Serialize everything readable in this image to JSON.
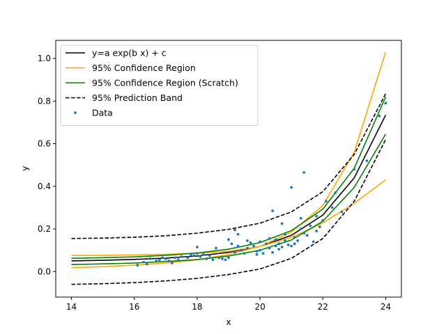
{
  "chart_data": {
    "type": "line",
    "xlabel": "x",
    "ylabel": "y",
    "xlim": [
      13.5,
      24.5
    ],
    "ylim": [
      -0.12,
      1.085
    ],
    "x_ticks": [
      14,
      16,
      18,
      20,
      22,
      24
    ],
    "x_tick_labels": [
      "14",
      "16",
      "18",
      "20",
      "22",
      "24"
    ],
    "y_ticks": [
      0.0,
      0.2,
      0.4,
      0.6,
      0.8,
      1.0
    ],
    "y_tick_labels": [
      "0.0",
      "0.2",
      "0.4",
      "0.6",
      "0.8",
      "1.0"
    ],
    "grid": false,
    "legend_position": "top-left",
    "x": [
      14,
      15,
      16,
      17,
      18,
      19,
      20,
      21,
      22,
      23,
      24
    ],
    "series": [
      {
        "name": "y=a exp(b x) + c",
        "color": "#000000",
        "style": "solid",
        "values": [
          0.05,
          0.053,
          0.057,
          0.063,
          0.073,
          0.09,
          0.118,
          0.17,
          0.265,
          0.44,
          0.735
        ]
      },
      {
        "name": "95% Confidence Region",
        "color": "#ffa500",
        "style": "solid",
        "values": [
          0.018,
          0.023,
          0.03,
          0.04,
          0.055,
          0.08,
          0.118,
          0.185,
          0.31,
          0.56,
          1.03
        ]
      },
      {
        "name": "95% Confidence Region",
        "color": "#ffa500",
        "style": "solid",
        "legend": false,
        "values": [
          0.075,
          0.076,
          0.078,
          0.081,
          0.086,
          0.095,
          0.118,
          0.16,
          0.228,
          0.32,
          0.43
        ]
      },
      {
        "name": "95% Confidence Region (Scratch)",
        "color": "#008000",
        "style": "solid",
        "values": [
          0.062,
          0.065,
          0.069,
          0.076,
          0.087,
          0.105,
          0.136,
          0.192,
          0.293,
          0.485,
          0.82
        ]
      },
      {
        "name": "95% Confidence Region (Scratch)",
        "color": "#008000",
        "style": "solid",
        "legend": false,
        "values": [
          0.033,
          0.036,
          0.04,
          0.047,
          0.056,
          0.073,
          0.1,
          0.148,
          0.236,
          0.395,
          0.645
        ]
      },
      {
        "name": "95% Prediction Band",
        "color": "#000000",
        "style": "dashed",
        "values": [
          0.155,
          0.157,
          0.161,
          0.168,
          0.18,
          0.198,
          0.227,
          0.28,
          0.375,
          0.55,
          0.835
        ]
      },
      {
        "name": "95% Prediction Band",
        "color": "#000000",
        "style": "dashed",
        "legend": false,
        "values": [
          -0.06,
          -0.057,
          -0.052,
          -0.044,
          -0.032,
          -0.014,
          0.012,
          0.062,
          0.155,
          0.33,
          0.62
        ]
      }
    ],
    "scatter": {
      "name": "Data",
      "color": "#1f77b4",
      "points": [
        [
          16.1,
          0.03
        ],
        [
          16.3,
          0.045
        ],
        [
          16.4,
          0.035
        ],
        [
          16.5,
          0.06
        ],
        [
          16.7,
          0.05
        ],
        [
          16.8,
          0.055
        ],
        [
          16.9,
          0.065
        ],
        [
          17.0,
          0.06
        ],
        [
          17.1,
          0.05
        ],
        [
          17.2,
          0.04
        ],
        [
          17.3,
          0.065
        ],
        [
          17.4,
          0.055
        ],
        [
          17.5,
          0.07
        ],
        [
          17.7,
          0.065
        ],
        [
          17.8,
          0.08
        ],
        [
          17.9,
          0.075
        ],
        [
          18.0,
          0.085
        ],
        [
          18.0,
          0.115
        ],
        [
          18.1,
          0.07
        ],
        [
          18.2,
          0.08
        ],
        [
          18.3,
          0.06
        ],
        [
          18.4,
          0.075
        ],
        [
          18.5,
          0.055
        ],
        [
          18.6,
          0.11
        ],
        [
          18.7,
          0.065
        ],
        [
          18.8,
          0.06
        ],
        [
          18.9,
          0.055
        ],
        [
          19.0,
          0.065
        ],
        [
          19.0,
          0.15
        ],
        [
          19.1,
          0.13
        ],
        [
          19.2,
          0.09
        ],
        [
          19.2,
          0.195
        ],
        [
          19.3,
          0.12
        ],
        [
          19.3,
          0.175
        ],
        [
          19.4,
          0.1
        ],
        [
          19.5,
          0.085
        ],
        [
          19.6,
          0.11
        ],
        [
          19.6,
          0.145
        ],
        [
          19.7,
          0.135
        ],
        [
          19.8,
          0.12
        ],
        [
          19.9,
          0.08
        ],
        [
          19.9,
          0.095
        ],
        [
          20.0,
          0.1
        ],
        [
          20.0,
          0.14
        ],
        [
          20.1,
          0.085
        ],
        [
          20.2,
          0.13
        ],
        [
          20.3,
          0.155
        ],
        [
          20.3,
          0.11
        ],
        [
          20.4,
          0.09
        ],
        [
          20.4,
          0.285
        ],
        [
          20.5,
          0.12
        ],
        [
          20.5,
          0.15
        ],
        [
          20.6,
          0.13
        ],
        [
          20.6,
          0.105
        ],
        [
          20.7,
          0.225
        ],
        [
          20.7,
          0.115
        ],
        [
          20.8,
          0.145
        ],
        [
          20.8,
          0.175
        ],
        [
          20.9,
          0.125
        ],
        [
          21.0,
          0.395
        ],
        [
          21.0,
          0.12
        ],
        [
          21.1,
          0.16
        ],
        [
          21.1,
          0.13
        ],
        [
          21.2,
          0.145
        ],
        [
          21.3,
          0.25
        ],
        [
          21.3,
          0.2
        ],
        [
          21.4,
          0.18
        ],
        [
          21.4,
          0.465
        ],
        [
          21.5,
          0.17
        ],
        [
          21.6,
          0.215
        ],
        [
          21.7,
          0.14
        ],
        [
          21.8,
          0.26
        ],
        [
          21.8,
          0.19
        ],
        [
          21.9,
          0.21
        ],
        [
          22.0,
          0.24
        ],
        [
          22.1,
          0.33
        ],
        [
          22.3,
          0.3
        ],
        [
          22.4,
          0.37
        ],
        [
          22.6,
          0.28
        ],
        [
          23.0,
          0.48
        ],
        [
          23.4,
          0.52
        ],
        [
          23.8,
          0.73
        ],
        [
          24.0,
          0.79
        ]
      ]
    }
  }
}
